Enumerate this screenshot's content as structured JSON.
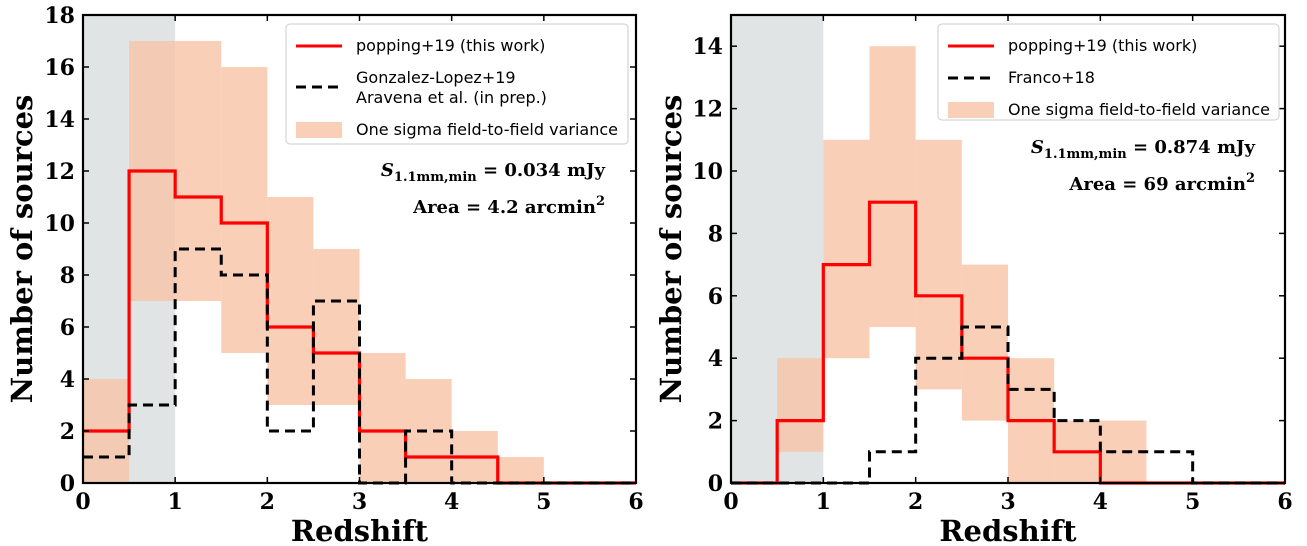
{
  "chart_data": [
    {
      "type": "histogram",
      "xlabel": "Redshift",
      "ylabel": "Number of sources",
      "xlim": [
        0,
        6
      ],
      "ylim": [
        0,
        18
      ],
      "xticks": [
        0,
        1,
        2,
        3,
        4,
        5,
        6
      ],
      "yticks": [
        0,
        2,
        4,
        6,
        8,
        10,
        12,
        14,
        16,
        18
      ],
      "shaded_region": [
        0,
        1
      ],
      "bin_edges": [
        0,
        0.5,
        1,
        1.5,
        2,
        2.5,
        3,
        3.5,
        4,
        4.5,
        5,
        5.5,
        6
      ],
      "series": [
        {
          "name": "popping+19 (this work)",
          "style": "solid",
          "color": "#ff0000",
          "values": [
            2,
            12,
            11,
            10,
            6,
            5,
            2,
            1,
            1,
            0,
            0,
            0
          ]
        },
        {
          "name": "Gonzalez-Lopez+19\nAravena et al. (in prep.)",
          "style": "dashed",
          "color": "#000000",
          "values": [
            1,
            3,
            9,
            8,
            2,
            7,
            0,
            2,
            0,
            0,
            0,
            0
          ]
        }
      ],
      "band": {
        "name": "One sigma field-to-field variance",
        "color": "#f8c3a6",
        "lower": [
          0,
          7,
          7,
          5,
          3,
          3,
          0,
          0,
          0,
          0,
          0,
          0
        ],
        "upper": [
          4,
          17,
          17,
          16,
          11,
          9,
          5,
          4,
          2,
          1,
          0,
          0
        ]
      },
      "annotations": [
        {
          "math": "S",
          "sub": "1.1mm,min",
          "text": " =  0.034 mJy"
        },
        {
          "text": "Area  =  4.2 arcmin",
          "sup": "2"
        }
      ],
      "legend_position": "upper-right"
    },
    {
      "type": "histogram",
      "xlabel": "Redshift",
      "ylabel": "Number of sources",
      "xlim": [
        0,
        6
      ],
      "ylim": [
        0,
        15
      ],
      "xticks": [
        0,
        1,
        2,
        3,
        4,
        5,
        6
      ],
      "yticks": [
        0,
        2,
        4,
        6,
        8,
        10,
        12,
        14
      ],
      "shaded_region": [
        0,
        1
      ],
      "bin_edges": [
        0,
        0.5,
        1,
        1.5,
        2,
        2.5,
        3,
        3.5,
        4,
        4.5,
        5,
        5.5,
        6
      ],
      "series": [
        {
          "name": "popping+19 (this work)",
          "style": "solid",
          "color": "#ff0000",
          "values": [
            0,
            2,
            7,
            9,
            6,
            4,
            2,
            1,
            0,
            0,
            0,
            0
          ]
        },
        {
          "name": "Franco+18",
          "style": "dashed",
          "color": "#000000",
          "values": [
            0,
            0,
            0,
            1,
            4,
            5,
            3,
            2,
            1,
            1,
            0,
            0
          ]
        }
      ],
      "band": {
        "name": "One sigma field-to-field variance",
        "color": "#f8c3a6",
        "lower": [
          0,
          1,
          4,
          5,
          3,
          2,
          0,
          0,
          0,
          0,
          0,
          0
        ],
        "upper": [
          0,
          4,
          11,
          14,
          11,
          7,
          4,
          2,
          2,
          0,
          0,
          0
        ]
      },
      "annotations": [
        {
          "math": "S",
          "sub": "1.1mm,min",
          "text": " =  0.874 mJy"
        },
        {
          "text": "Area  =  69 arcmin",
          "sup": "2"
        }
      ],
      "legend_position": "upper-right"
    }
  ],
  "colors": {
    "shade": "#dcdfe0",
    "band": "#f8c3a6",
    "red": "#ff0000",
    "black": "#000000"
  }
}
